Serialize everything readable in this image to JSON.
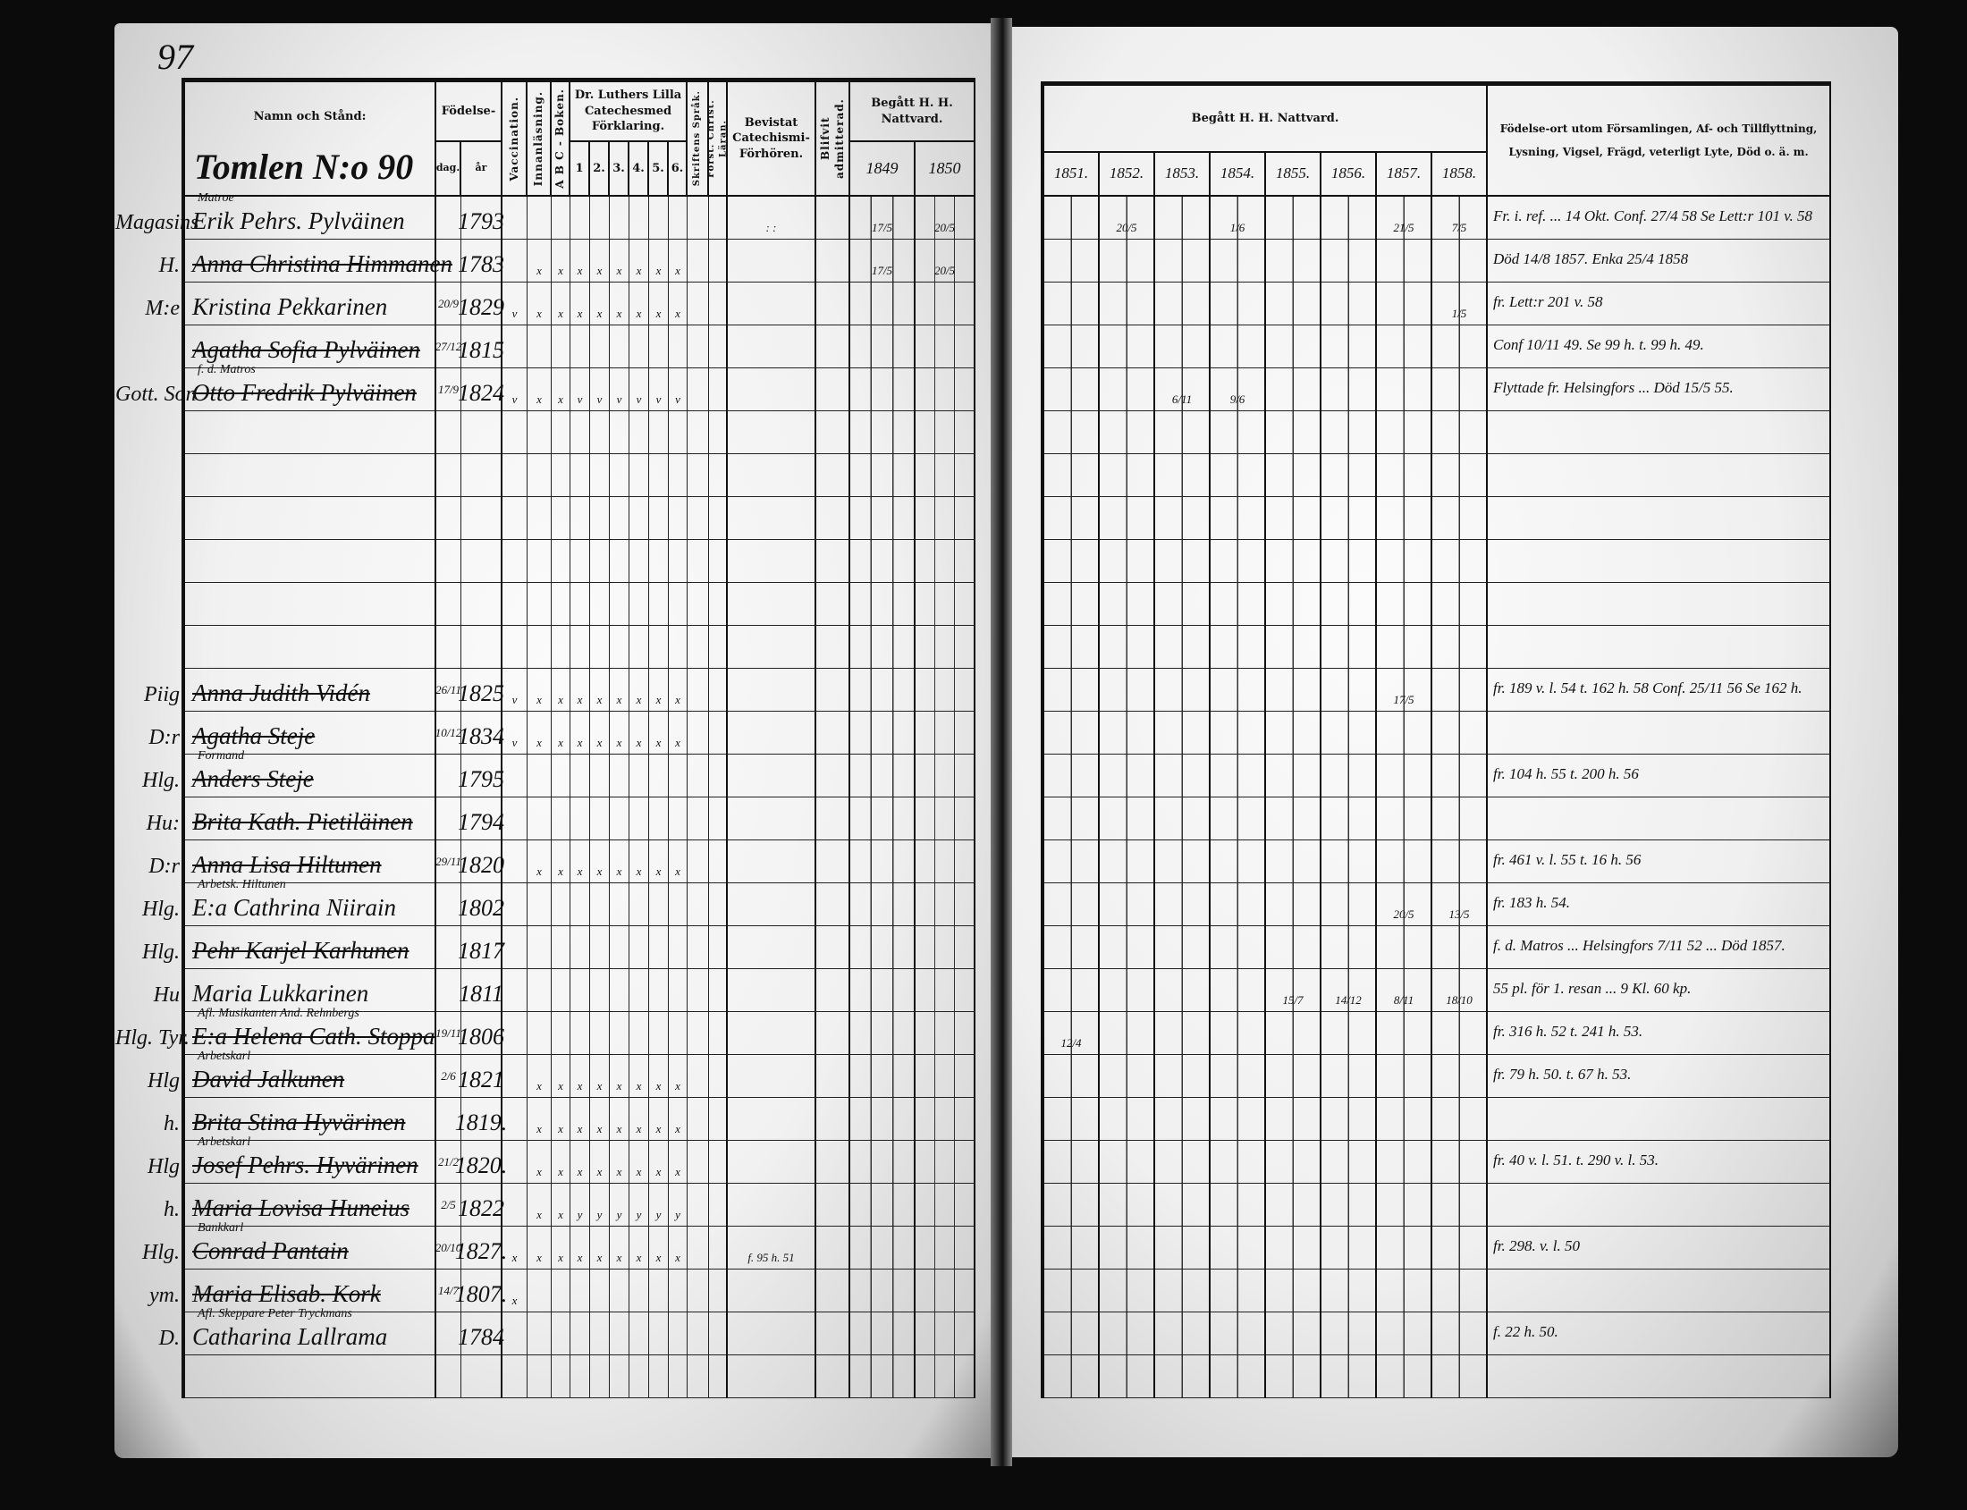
{
  "page_number": "97",
  "left_header": {
    "name_col": "Namn och Stånd:",
    "household": "Tomlen N:o 90",
    "birth": "Födelse-",
    "birth_day": "dag.",
    "birth_year": "år",
    "vaccination": "Vaccination.",
    "reading": "Innanläsning.",
    "abc": "A B C - Boken.",
    "catechism": "Dr. Luthers Lilla Catechesmed Förklaring.",
    "catechism_parts": [
      "1",
      "2.",
      "3.",
      "4.",
      "5.",
      "6."
    ],
    "scripture": "Skriftens Språk.",
    "christian": "Först. Christ. Läran.",
    "examinations": "Bevistat Catechismi-Förhören.",
    "admitted": "Blifvit admitterad.",
    "communion": "Begått H. H. Nattvard.",
    "communion_years": [
      "1849",
      "1850"
    ]
  },
  "right_header": {
    "communion": "Begått H. H. Nattvard.",
    "communion_years": [
      "1851.",
      "1852.",
      "1853.",
      "1854.",
      "1855.",
      "1856.",
      "1857.",
      "1858."
    ],
    "remarks": "Födelse-ort utom Församlingen, Af- och Tillflyttning, Lysning, Vigsel, Frägd, veterligt Lyte, Död o. ä. m."
  },
  "rows": [
    {
      "margin": "Magasins",
      "title": "Matroe",
      "name": "Erik Pehrs. Pylväinen",
      "day": "",
      "year": "1793",
      "struck": false,
      "checks": [
        "",
        "",
        "",
        "",
        "",
        "",
        "",
        "",
        ""
      ],
      "exam": ": :",
      "c_left": [
        "17/5",
        "20/5"
      ],
      "c_right": [
        "",
        "20/5",
        "",
        "1/6",
        "",
        "",
        "21/5",
        "7/5"
      ],
      "remark": "Fr. i. ref. ... 14 Okt. Conf. 27/4 58 Se Lett:r 101 v. 58"
    },
    {
      "margin": "H.",
      "title": "",
      "name": "Anna Christina Himmanen",
      "day": "",
      "year": "1783",
      "struck": true,
      "checks": [
        "",
        "x",
        "x",
        "x",
        "x",
        "x",
        "x",
        "x",
        "x"
      ],
      "exam": "",
      "c_left": [
        "17/5",
        "20/5"
      ],
      "c_right": [
        "",
        "",
        "",
        "",
        "",
        "",
        "",
        ""
      ],
      "remark": "Död 14/8 1857.   Enka 25/4 1858"
    },
    {
      "margin": "M:e",
      "title": "",
      "name": "Kristina Pekkarinen",
      "day": "20/9",
      "year": "1829",
      "struck": false,
      "checks": [
        "v",
        "x",
        "x",
        "x",
        "x",
        "x",
        "x",
        "x",
        "x"
      ],
      "exam": "",
      "c_left": [
        "",
        ""
      ],
      "c_right": [
        "",
        "",
        "",
        "",
        "",
        "",
        "",
        "1/5"
      ],
      "remark": "fr. Lett:r 201 v. 58"
    },
    {
      "margin": "",
      "title": "",
      "name": "Agatha Sofia Pylväinen",
      "day": "27/12",
      "year": "1815",
      "struck": true,
      "checks": [
        "",
        "",
        "",
        "",
        "",
        "",
        "",
        "",
        ""
      ],
      "exam": "",
      "c_left": [
        "",
        ""
      ],
      "c_right": [
        "",
        "",
        "",
        "",
        "",
        "",
        "",
        ""
      ],
      "remark": "Conf 10/11 49. Se 99 h. t. 99 h. 49."
    },
    {
      "margin": "Gott. Son",
      "title": "f. d. Matros",
      "name": "Otto Fredrik Pylväinen",
      "day": "17/9",
      "year": "1824",
      "struck": true,
      "checks": [
        "v",
        "x",
        "x",
        "v",
        "v",
        "v",
        "v",
        "v",
        "v"
      ],
      "exam": "",
      "c_left": [
        "",
        ""
      ],
      "c_right": [
        "",
        "",
        "6/11",
        "9/6",
        "",
        "",
        "",
        ""
      ],
      "remark": "Flyttade fr. Helsingfors ... Död 15/5 55."
    },
    {
      "margin": "",
      "title": "",
      "name": "",
      "day": "",
      "year": "",
      "struck": false,
      "checks": [
        "",
        "",
        "",
        "",
        "",
        "",
        "",
        "",
        ""
      ],
      "exam": "",
      "c_left": [
        "",
        ""
      ],
      "c_right": [
        "",
        "",
        "",
        "",
        "",
        "",
        "",
        ""
      ],
      "remark": ""
    },
    {
      "margin": "",
      "title": "",
      "name": "",
      "day": "",
      "year": "",
      "struck": false,
      "checks": [
        "",
        "",
        "",
        "",
        "",
        "",
        "",
        "",
        ""
      ],
      "exam": "",
      "c_left": [
        "",
        ""
      ],
      "c_right": [
        "",
        "",
        "",
        "",
        "",
        "",
        "",
        ""
      ],
      "remark": ""
    },
    {
      "margin": "",
      "title": "",
      "name": "",
      "day": "",
      "year": "",
      "struck": false,
      "checks": [
        "",
        "",
        "",
        "",
        "",
        "",
        "",
        "",
        ""
      ],
      "exam": "",
      "c_left": [
        "",
        ""
      ],
      "c_right": [
        "",
        "",
        "",
        "",
        "",
        "",
        "",
        ""
      ],
      "remark": ""
    },
    {
      "margin": "",
      "title": "",
      "name": "",
      "day": "",
      "year": "",
      "struck": false,
      "checks": [
        "",
        "",
        "",
        "",
        "",
        "",
        "",
        "",
        ""
      ],
      "exam": "",
      "c_left": [
        "",
        ""
      ],
      "c_right": [
        "",
        "",
        "",
        "",
        "",
        "",
        "",
        ""
      ],
      "remark": ""
    },
    {
      "margin": "",
      "title": "",
      "name": "",
      "day": "",
      "year": "",
      "struck": false,
      "checks": [
        "",
        "",
        "",
        "",
        "",
        "",
        "",
        "",
        ""
      ],
      "exam": "",
      "c_left": [
        "",
        ""
      ],
      "c_right": [
        "",
        "",
        "",
        "",
        "",
        "",
        "",
        ""
      ],
      "remark": ""
    },
    {
      "margin": "",
      "title": "",
      "name": "",
      "day": "",
      "year": "",
      "struck": false,
      "checks": [
        "",
        "",
        "",
        "",
        "",
        "",
        "",
        "",
        ""
      ],
      "exam": "",
      "c_left": [
        "",
        ""
      ],
      "c_right": [
        "",
        "",
        "",
        "",
        "",
        "",
        "",
        ""
      ],
      "remark": ""
    },
    {
      "margin": "Piig",
      "title": "",
      "name": "Anna Judith Vidén",
      "day": "26/11",
      "year": "1825",
      "struck": true,
      "checks": [
        "v",
        "x",
        "x",
        "x",
        "x",
        "x",
        "x",
        "x",
        "x"
      ],
      "exam": "",
      "c_left": [
        "",
        ""
      ],
      "c_right": [
        "",
        "",
        "",
        "",
        "",
        "",
        "17/5",
        ""
      ],
      "remark": "fr. 189 v. l. 54 t. 162 h. 58 Conf. 25/11 56 Se 162 h."
    },
    {
      "margin": "D:r",
      "title": "",
      "name": "Agatha Steje",
      "day": "10/12",
      "year": "1834",
      "struck": true,
      "checks": [
        "v",
        "x",
        "x",
        "x",
        "x",
        "x",
        "x",
        "x",
        "x"
      ],
      "exam": "",
      "c_left": [
        "",
        ""
      ],
      "c_right": [
        "",
        "",
        "",
        "",
        "",
        "",
        "",
        ""
      ],
      "remark": ""
    },
    {
      "margin": "Hlg.",
      "title": "Formand",
      "name": "Anders Steje",
      "day": "",
      "year": "1795",
      "struck": true,
      "checks": [
        "",
        "",
        "",
        "",
        "",
        "",
        "",
        "",
        ""
      ],
      "exam": "",
      "c_left": [
        "",
        ""
      ],
      "c_right": [
        "",
        "",
        "",
        "",
        "",
        "",
        "",
        ""
      ],
      "remark": "fr. 104 h. 55 t. 200 h. 56"
    },
    {
      "margin": "Hu:",
      "title": "",
      "name": "Brita Kath. Pietiläinen",
      "day": "",
      "year": "1794",
      "struck": true,
      "checks": [
        "",
        "",
        "",
        "",
        "",
        "",
        "",
        "",
        ""
      ],
      "exam": "",
      "c_left": [
        "",
        ""
      ],
      "c_right": [
        "",
        "",
        "",
        "",
        "",
        "",
        "",
        ""
      ],
      "remark": ""
    },
    {
      "margin": "D:r",
      "title": "",
      "name": "Anna Lisa Hiltunen",
      "day": "29/11",
      "year": "1820",
      "struck": true,
      "checks": [
        "",
        "x",
        "x",
        "x",
        "x",
        "x",
        "x",
        "x",
        "x"
      ],
      "exam": "",
      "c_left": [
        "",
        ""
      ],
      "c_right": [
        "",
        "",
        "",
        "",
        "",
        "",
        "",
        ""
      ],
      "remark": "fr. 461 v. l. 55 t. 16 h. 56"
    },
    {
      "margin": "Hlg.",
      "title": "Arbetsk. Hiltunen",
      "name": "E:a Cathrina Niirain",
      "day": "",
      "year": "1802",
      "struck": false,
      "checks": [
        "",
        "",
        "",
        "",
        "",
        "",
        "",
        "",
        ""
      ],
      "exam": "",
      "c_left": [
        "",
        ""
      ],
      "c_right": [
        "",
        "",
        "",
        "",
        "",
        "",
        "20/5",
        "13/5"
      ],
      "remark": "fr. 183 h. 54."
    },
    {
      "margin": "Hlg.",
      "title": "",
      "name": "Pehr Karjel Karhunen",
      "day": "",
      "year": "1817",
      "struck": true,
      "checks": [
        "",
        "",
        "",
        "",
        "",
        "",
        "",
        "",
        ""
      ],
      "exam": "",
      "c_left": [
        "",
        ""
      ],
      "c_right": [
        "",
        "",
        "",
        "",
        "",
        "",
        "",
        ""
      ],
      "remark": "f. d. Matros ... Helsingfors 7/11 52 ... Död 1857."
    },
    {
      "margin": "Hu",
      "title": "",
      "name": "Maria Lukkarinen",
      "day": "",
      "year": "1811",
      "struck": false,
      "checks": [
        "",
        "",
        "",
        "",
        "",
        "",
        "",
        "",
        ""
      ],
      "exam": "",
      "c_left": [
        "",
        ""
      ],
      "c_right": [
        "",
        "",
        "",
        "",
        "15/7",
        "14/12",
        "8/11",
        "18/10"
      ],
      "remark": "55 pl. för 1. resan ... 9 Kl. 60 kp."
    },
    {
      "margin": "Hlg. Tyr.",
      "title": "Afl. Musikanten And. Rehnbergs",
      "name": "E:a Helena Cath. Stoppa",
      "day": "19/11",
      "year": "1806",
      "struck": true,
      "checks": [
        "",
        "",
        "",
        "",
        "",
        "",
        "",
        "",
        ""
      ],
      "exam": "",
      "c_left": [
        "",
        ""
      ],
      "c_right": [
        "12/4",
        "",
        "",
        "",
        "",
        "",
        "",
        ""
      ],
      "remark": "fr. 316 h. 52 t. 241 h. 53."
    },
    {
      "margin": "Hlg",
      "title": "Arbetskarl",
      "name": "David Jalkunen",
      "day": "2/6",
      "year": "1821",
      "struck": true,
      "checks": [
        "",
        "x",
        "x",
        "x",
        "x",
        "x",
        "x",
        "x",
        "x"
      ],
      "exam": "",
      "c_left": [
        "",
        ""
      ],
      "c_right": [
        "",
        "",
        "",
        "",
        "",
        "",
        "",
        ""
      ],
      "remark": "fr. 79 h. 50. t. 67 h. 53."
    },
    {
      "margin": "h.",
      "title": "",
      "name": "Brita Stina Hyvärinen",
      "day": "",
      "year": "1819.",
      "struck": true,
      "checks": [
        "",
        "x",
        "x",
        "x",
        "x",
        "x",
        "x",
        "x",
        "x"
      ],
      "exam": "",
      "c_left": [
        "",
        ""
      ],
      "c_right": [
        "",
        "",
        "",
        "",
        "",
        "",
        "",
        ""
      ],
      "remark": ""
    },
    {
      "margin": "Hlg",
      "title": "Arbetskarl",
      "name": "Josef Pehrs. Hyvärinen",
      "day": "21/2",
      "year": "1820.",
      "struck": true,
      "checks": [
        "",
        "x",
        "x",
        "x",
        "x",
        "x",
        "x",
        "x",
        "x"
      ],
      "exam": "",
      "c_left": [
        "",
        ""
      ],
      "c_right": [
        "",
        "",
        "",
        "",
        "",
        "",
        "",
        ""
      ],
      "remark": "fr. 40 v. l. 51. t. 290 v. l. 53."
    },
    {
      "margin": "h.",
      "title": "",
      "name": "Maria Lovisa Huneius",
      "day": "2/5",
      "year": "1822",
      "struck": true,
      "checks": [
        "",
        "x",
        "x",
        "y",
        "y",
        "y",
        "y",
        "y",
        "y"
      ],
      "exam": "",
      "c_left": [
        "",
        ""
      ],
      "c_right": [
        "",
        "",
        "",
        "",
        "",
        "",
        "",
        ""
      ],
      "remark": ""
    },
    {
      "margin": "Hlg.",
      "title": "Bankkarl",
      "name": "Conrad Pantain",
      "day": "20/10",
      "year": "1827.",
      "struck": true,
      "checks": [
        "x",
        "x",
        "x",
        "x",
        "x",
        "x",
        "x",
        "x",
        "x"
      ],
      "exam": "f. 95 h. 51",
      "c_left": [
        "",
        ""
      ],
      "c_right": [
        "",
        "",
        "",
        "",
        "",
        "",
        "",
        ""
      ],
      "remark": "fr. 298. v. l. 50"
    },
    {
      "margin": "ym.",
      "title": "",
      "name": "Maria Elisab. Kork",
      "day": "14/7",
      "year": "1807.",
      "struck": true,
      "checks": [
        "x",
        "",
        "",
        "",
        "",
        "",
        "",
        "",
        ""
      ],
      "exam": "",
      "c_left": [
        "",
        ""
      ],
      "c_right": [
        "",
        "",
        "",
        "",
        "",
        "",
        "",
        ""
      ],
      "remark": ""
    },
    {
      "margin": "D.",
      "title": "Afl. Skeppare Peter Tryckmans",
      "name": "Catharina Lallrama",
      "day": "",
      "year": "1784",
      "struck": false,
      "checks": [
        "",
        "",
        "",
        "",
        "",
        "",
        "",
        "",
        ""
      ],
      "exam": "",
      "c_left": [
        "",
        ""
      ],
      "c_right": [
        "",
        "",
        "",
        "",
        "",
        "",
        "",
        ""
      ],
      "remark": "f. 22 h. 50."
    },
    {
      "margin": "",
      "title": "",
      "name": "",
      "day": "",
      "year": "",
      "struck": false,
      "checks": [
        "",
        "",
        "",
        "",
        "",
        "",
        "",
        "",
        ""
      ],
      "exam": "",
      "c_left": [
        "",
        ""
      ],
      "c_right": [
        "",
        "",
        "",
        "",
        "",
        "",
        "",
        ""
      ],
      "remark": ""
    }
  ]
}
